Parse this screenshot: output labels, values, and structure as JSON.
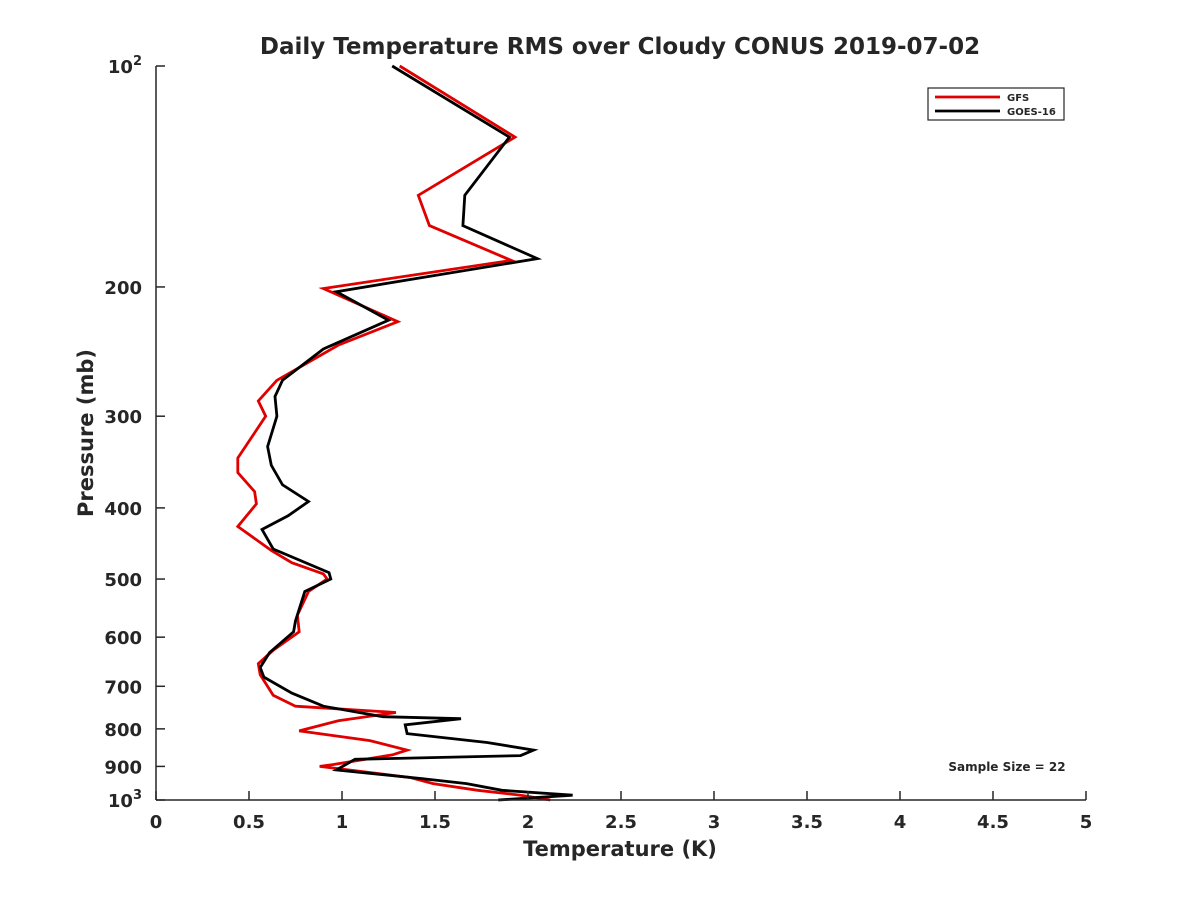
{
  "chart_data": {
    "type": "line",
    "title": "Daily Temperature RMS over Cloudy CONUS 2019-07-02",
    "xlabel": "Temperature (K)",
    "ylabel": "Pressure (mb)",
    "xlim": [
      0,
      5
    ],
    "ylim": [
      100,
      1000
    ],
    "y_scale": "log",
    "y_reversed": true,
    "grid": false,
    "legend_position": "top-right",
    "x_ticks": [
      {
        "value": 0,
        "label": "0"
      },
      {
        "value": 0.5,
        "label": "0.5"
      },
      {
        "value": 1,
        "label": "1"
      },
      {
        "value": 1.5,
        "label": "1.5"
      },
      {
        "value": 2,
        "label": "2"
      },
      {
        "value": 2.5,
        "label": "2.5"
      },
      {
        "value": 3,
        "label": "3"
      },
      {
        "value": 3.5,
        "label": "3.5"
      },
      {
        "value": 4,
        "label": "4"
      },
      {
        "value": 4.5,
        "label": "4.5"
      },
      {
        "value": 5,
        "label": "5"
      }
    ],
    "y_ticks": [
      {
        "value": 100,
        "label": "10",
        "sup": "2"
      },
      {
        "value": 200,
        "label": "200"
      },
      {
        "value": 300,
        "label": "300"
      },
      {
        "value": 400,
        "label": "400"
      },
      {
        "value": 500,
        "label": "500"
      },
      {
        "value": 600,
        "label": "600"
      },
      {
        "value": 700,
        "label": "700"
      },
      {
        "value": 800,
        "label": "800"
      },
      {
        "value": 900,
        "label": "900"
      },
      {
        "value": 1000,
        "label": "10",
        "sup": "3"
      }
    ],
    "annotation": "Sample Size = 22",
    "series": [
      {
        "name": "GFS",
        "color": "#e00000",
        "points": [
          [
            1.31,
            100
          ],
          [
            1.93,
            125
          ],
          [
            1.41,
            150
          ],
          [
            1.47,
            165
          ],
          [
            1.91,
            184
          ],
          [
            0.9,
            201
          ],
          [
            1.3,
            223
          ],
          [
            0.98,
            240
          ],
          [
            0.65,
            268
          ],
          [
            0.55,
            286
          ],
          [
            0.59,
            300
          ],
          [
            0.44,
            342
          ],
          [
            0.44,
            358
          ],
          [
            0.53,
            380
          ],
          [
            0.54,
            395
          ],
          [
            0.44,
            424
          ],
          [
            0.62,
            457
          ],
          [
            0.73,
            475
          ],
          [
            0.9,
            492
          ],
          [
            0.92,
            500
          ],
          [
            0.82,
            520
          ],
          [
            0.76,
            560
          ],
          [
            0.77,
            590
          ],
          [
            0.63,
            625
          ],
          [
            0.55,
            652
          ],
          [
            0.56,
            675
          ],
          [
            0.63,
            720
          ],
          [
            0.75,
            745
          ],
          [
            1.29,
            760
          ],
          [
            0.98,
            780
          ],
          [
            0.77,
            805
          ],
          [
            1.15,
            830
          ],
          [
            1.35,
            855
          ],
          [
            1.27,
            868
          ],
          [
            0.95,
            895
          ],
          [
            0.88,
            900
          ],
          [
            1.37,
            932
          ],
          [
            1.49,
            950
          ],
          [
            1.73,
            970
          ],
          [
            1.96,
            985
          ],
          [
            2.12,
            1000
          ]
        ]
      },
      {
        "name": "GOES-16",
        "color": "#000000",
        "points": [
          [
            1.27,
            100
          ],
          [
            1.9,
            125
          ],
          [
            1.66,
            150
          ],
          [
            1.65,
            165
          ],
          [
            2.05,
            183
          ],
          [
            0.97,
            203
          ],
          [
            1.25,
            222
          ],
          [
            0.9,
            243
          ],
          [
            0.68,
            268
          ],
          [
            0.64,
            282
          ],
          [
            0.65,
            300
          ],
          [
            0.6,
            330
          ],
          [
            0.62,
            350
          ],
          [
            0.68,
            372
          ],
          [
            0.82,
            392
          ],
          [
            0.71,
            410
          ],
          [
            0.57,
            428
          ],
          [
            0.63,
            455
          ],
          [
            0.93,
            490
          ],
          [
            0.94,
            500
          ],
          [
            0.8,
            520
          ],
          [
            0.75,
            570
          ],
          [
            0.74,
            590
          ],
          [
            0.61,
            630
          ],
          [
            0.56,
            660
          ],
          [
            0.58,
            680
          ],
          [
            0.73,
            715
          ],
          [
            0.9,
            745
          ],
          [
            1.22,
            770
          ],
          [
            1.64,
            775
          ],
          [
            1.34,
            790
          ],
          [
            1.35,
            812
          ],
          [
            1.78,
            835
          ],
          [
            2.03,
            855
          ],
          [
            1.96,
            870
          ],
          [
            1.07,
            880
          ],
          [
            0.97,
            910
          ],
          [
            1.43,
            935
          ],
          [
            1.67,
            950
          ],
          [
            1.86,
            970
          ],
          [
            2.24,
            985
          ],
          [
            1.84,
            1000
          ]
        ]
      }
    ]
  }
}
